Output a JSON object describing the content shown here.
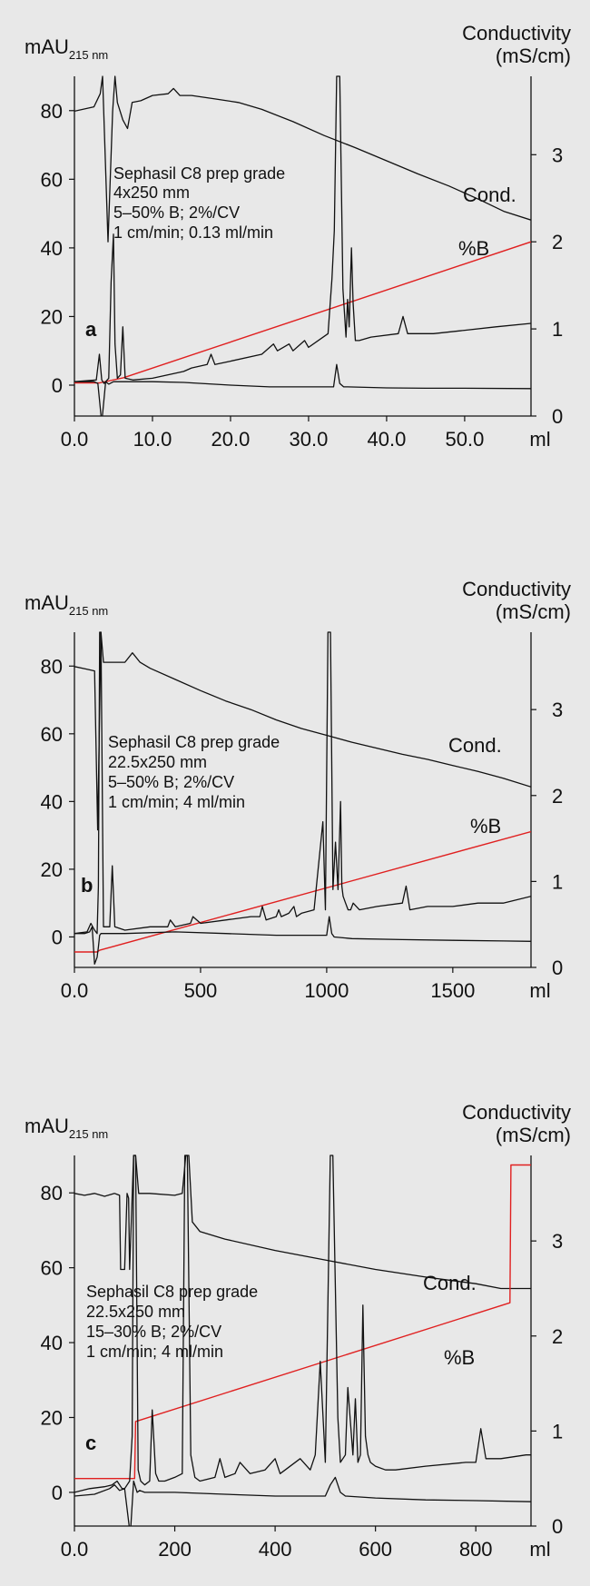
{
  "chart_data": [
    {
      "type": "line",
      "panel_label": "a",
      "y_left_label": "mAU",
      "y_left_label_sub": "215 nm",
      "y_right_label": [
        "Conductivity",
        "(mS/cm)"
      ],
      "x_unit": "ml",
      "xlim": [
        0,
        58.5
      ],
      "ylim_left": [
        -9,
        90
      ],
      "ylim_right": [
        0,
        3.9
      ],
      "x_ticks": [
        0,
        10,
        20,
        30,
        40,
        50
      ],
      "x_tick_labels": [
        "0.0",
        "10.0",
        "20.0",
        "30.0",
        "40.0",
        "50.0"
      ],
      "y_left_ticks": [
        0,
        20,
        40,
        60,
        80
      ],
      "y_left_tick_labels": [
        "0",
        "20",
        "40",
        "60",
        "80"
      ],
      "y_right_ticks": [
        0,
        1,
        2,
        3
      ],
      "y_right_tick_labels": [
        "0",
        "1",
        "2",
        "3"
      ],
      "annotation": [
        "Sephasil C8 prep grade",
        "4x250 mm",
        "5–50% B; 2%/CV",
        "1 cm/min; 0.13 ml/min"
      ],
      "series": [
        {
          "name": "Cond.",
          "axis": "right",
          "color": "#111111",
          "x": [
            0,
            2.5,
            3.3,
            3.6,
            4.3,
            4.9,
            5.2,
            5.5,
            6.2,
            6.8,
            7.4,
            8.5,
            10,
            12,
            12.7,
            13.5,
            15,
            18,
            21,
            24,
            28,
            32,
            36,
            40,
            44,
            48,
            52,
            55,
            58.5
          ],
          "y": [
            3.5,
            3.55,
            3.7,
            3.9,
            2.0,
            3.5,
            3.9,
            3.6,
            3.4,
            3.3,
            3.6,
            3.62,
            3.68,
            3.7,
            3.76,
            3.68,
            3.68,
            3.64,
            3.6,
            3.52,
            3.38,
            3.22,
            3.08,
            2.93,
            2.78,
            2.64,
            2.48,
            2.35,
            2.25
          ]
        },
        {
          "name": "%B",
          "axis": "right",
          "color": "#e02020",
          "x": [
            0,
            3.2,
            6.3,
            58.5
          ],
          "y": [
            0.38,
            0.38,
            0.44,
            2.0
          ]
        },
        {
          "name": "UV 215 nm",
          "axis": "left",
          "color": "#111111",
          "x": [
            0,
            2.8,
            3.2,
            3.5,
            3.8,
            4.4,
            4.7,
            5.0,
            5.2,
            5.5,
            5.9,
            6.2,
            6.5,
            7.5,
            10,
            14,
            15,
            17,
            17.5,
            18,
            20,
            24,
            25.5,
            26,
            27.5,
            28,
            29.5,
            30,
            32.5,
            33,
            33.3,
            33.6,
            34.0,
            34.4,
            34.8,
            35.0,
            35.2,
            35.5,
            35.7,
            36.0,
            36.5,
            38,
            41.5,
            42.1,
            42.7,
            46,
            50,
            54,
            58.5
          ],
          "y": [
            1,
            1.5,
            9,
            1.5,
            0.5,
            2,
            30,
            44,
            12,
            2,
            3,
            17,
            2,
            1.5,
            2,
            4,
            5,
            6,
            9,
            6,
            7,
            9,
            12,
            10,
            12,
            10,
            13,
            11,
            15,
            31,
            45,
            90,
            90,
            28,
            14,
            25,
            17,
            40,
            24,
            13,
            13,
            14,
            15,
            20,
            15,
            15,
            16,
            17,
            18
          ]
        },
        {
          "name": "Baseline",
          "axis": "left",
          "color": "#111111",
          "x": [
            0,
            2.5,
            3.0,
            3.5,
            4.0,
            4.4,
            5.0,
            6,
            8,
            10,
            14,
            20,
            25,
            30,
            33.2,
            33.6,
            34.0,
            34.5,
            35,
            40,
            45,
            50,
            58.5
          ],
          "y": [
            1,
            1,
            0.5,
            -11,
            1,
            0.3,
            1,
            1,
            1,
            1,
            0.8,
            0,
            -0.5,
            -0.5,
            -0.5,
            6,
            0.5,
            -0.5,
            -0.5,
            -0.8,
            -0.9,
            -0.9,
            -1
          ]
        }
      ]
    },
    {
      "type": "line",
      "panel_label": "b",
      "y_left_label": "mAU",
      "y_left_label_sub": "215 nm",
      "y_right_label": [
        "Conductivity",
        "(mS/cm)"
      ],
      "x_unit": "ml",
      "xlim": [
        0,
        1810
      ],
      "ylim_left": [
        -9,
        90
      ],
      "ylim_right": [
        0,
        3.9
      ],
      "x_ticks": [
        0,
        500,
        1000,
        1500
      ],
      "x_tick_labels": [
        "0.0",
        "500",
        "1000",
        "1500"
      ],
      "y_left_ticks": [
        0,
        20,
        40,
        60,
        80
      ],
      "y_left_tick_labels": [
        "0",
        "20",
        "40",
        "60",
        "80"
      ],
      "y_right_ticks": [
        0,
        1,
        2,
        3
      ],
      "y_right_tick_labels": [
        "0",
        "1",
        "2",
        "3"
      ],
      "annotation": [
        "Sephasil C8 prep grade",
        "22.5x250 mm",
        "5–50% B; 2%/CV",
        "1 cm/min; 4 ml/min"
      ],
      "series": [
        {
          "name": "Cond.",
          "axis": "right",
          "color": "#111111",
          "x": [
            0,
            50,
            80,
            92,
            105,
            115,
            150,
            200,
            230,
            260,
            300,
            400,
            500,
            600,
            700,
            800,
            900,
            1000,
            1100,
            1200,
            1300,
            1400,
            1500,
            1600,
            1700,
            1810
          ],
          "y": [
            3.5,
            3.47,
            3.45,
            1.6,
            3.9,
            3.55,
            3.55,
            3.55,
            3.66,
            3.55,
            3.48,
            3.35,
            3.22,
            3.1,
            3.0,
            2.88,
            2.78,
            2.7,
            2.62,
            2.55,
            2.48,
            2.42,
            2.35,
            2.28,
            2.2,
            2.1
          ]
        },
        {
          "name": "%B",
          "axis": "right",
          "color": "#e02020",
          "x": [
            0,
            90,
            100,
            1810
          ],
          "y": [
            0.18,
            0.18,
            0.2,
            1.58
          ]
        },
        {
          "name": "UV 215 nm",
          "axis": "left",
          "color": "#111111",
          "x": [
            0,
            50,
            65,
            80,
            90,
            95,
            100,
            105,
            115,
            140,
            150,
            160,
            200,
            300,
            370,
            380,
            400,
            460,
            470,
            500,
            600,
            700,
            735,
            745,
            760,
            800,
            810,
            820,
            850,
            870,
            880,
            900,
            950,
            985,
            995,
            1005,
            1015,
            1025,
            1035,
            1045,
            1055,
            1060,
            1065,
            1075,
            1085,
            1095,
            1105,
            1130,
            1200,
            1300,
            1315,
            1330,
            1400,
            1500,
            1600,
            1700,
            1810
          ],
          "y": [
            1,
            1.5,
            4,
            2,
            1,
            15,
            90,
            90,
            3,
            3,
            21,
            3,
            2,
            3,
            3,
            5,
            3,
            4,
            6,
            4,
            5,
            6,
            6,
            9,
            5,
            6,
            8,
            6,
            7,
            9,
            6,
            7,
            8,
            34,
            8,
            90,
            90,
            14,
            28,
            14,
            40,
            15,
            12,
            10,
            8,
            8,
            10,
            8,
            9,
            10,
            15,
            8,
            9,
            9,
            10,
            10,
            12
          ]
        },
        {
          "name": "Baseline",
          "axis": "left",
          "color": "#111111",
          "x": [
            0,
            40,
            60,
            70,
            80,
            90,
            95,
            100,
            105,
            200,
            400,
            600,
            800,
            1000,
            1010,
            1020,
            1030,
            1100,
            1300,
            1500,
            1700,
            1810
          ],
          "y": [
            1,
            1,
            1.5,
            3,
            -8,
            -6,
            -3,
            0.5,
            1,
            1,
            1.5,
            1,
            0.5,
            0.5,
            6,
            1,
            0,
            -0.5,
            -0.8,
            -1,
            -1.2,
            -1.3
          ]
        }
      ]
    },
    {
      "type": "line",
      "panel_label": "c",
      "y_left_label": "mAU",
      "y_left_label_sub": "215 nm",
      "y_right_label": [
        "Conductivity",
        "(mS/cm)"
      ],
      "x_unit": "ml",
      "xlim": [
        0,
        910
      ],
      "ylim_left": [
        -9,
        90
      ],
      "ylim_right": [
        0,
        3.9
      ],
      "x_ticks": [
        0,
        200,
        400,
        600,
        800
      ],
      "x_tick_labels": [
        "0.0",
        "200",
        "400",
        "600",
        "800"
      ],
      "y_left_ticks": [
        0,
        20,
        40,
        60,
        80
      ],
      "y_left_tick_labels": [
        "0",
        "20",
        "40",
        "60",
        "80"
      ],
      "y_right_ticks": [
        0,
        1,
        2,
        3
      ],
      "y_right_tick_labels": [
        "0",
        "1",
        "2",
        "3"
      ],
      "annotation": [
        "Sephasil C8 prep grade",
        "22.5x250 mm",
        "15–30% B; 2%/CV",
        "1 cm/min; 4 ml/min"
      ],
      "series": [
        {
          "name": "Cond.",
          "axis": "right",
          "color": "#111111",
          "x": [
            0,
            20,
            40,
            60,
            80,
            90,
            92,
            100,
            105,
            108,
            110,
            118,
            122,
            128,
            150,
            200,
            215,
            222,
            228,
            235,
            250,
            300,
            400,
            500,
            600,
            700,
            800,
            850,
            910
          ],
          "y": [
            3.5,
            3.48,
            3.5,
            3.47,
            3.5,
            3.48,
            2.7,
            2.7,
            3.5,
            3.45,
            2.7,
            3.9,
            3.9,
            3.5,
            3.5,
            3.48,
            3.5,
            3.9,
            3.9,
            3.2,
            3.1,
            3.02,
            2.9,
            2.8,
            2.7,
            2.62,
            2.55,
            2.5,
            2.5
          ]
        },
        {
          "name": "%B",
          "axis": "right",
          "color": "#e02020",
          "x": [
            0,
            120,
            122,
            868,
            870,
            910
          ],
          "y": [
            0.5,
            0.5,
            1.1,
            2.35,
            3.8,
            3.8
          ]
        },
        {
          "name": "UV 215 nm",
          "axis": "left",
          "color": "#111111",
          "x": [
            0,
            30,
            60,
            75,
            85,
            95,
            100,
            110,
            115,
            118,
            122,
            127,
            132,
            140,
            150,
            155,
            162,
            168,
            180,
            200,
            215,
            220,
            225,
            232,
            240,
            250,
            280,
            290,
            300,
            320,
            330,
            350,
            380,
            400,
            410,
            420,
            450,
            470,
            480,
            490,
            500,
            510,
            515,
            525,
            530,
            540,
            545,
            555,
            560,
            565,
            570,
            575,
            580,
            585,
            590,
            600,
            620,
            640,
            700,
            780,
            800,
            810,
            820,
            850,
            900,
            910
          ],
          "y": [
            0,
            1,
            1.5,
            2,
            3,
            1,
            1,
            3,
            15,
            90,
            90,
            6,
            3,
            2,
            3,
            22,
            5,
            3,
            3,
            4,
            5,
            90,
            90,
            10,
            4,
            3,
            4,
            9,
            4,
            5,
            8,
            5,
            6,
            9,
            5,
            6,
            9,
            6,
            10,
            35,
            8,
            90,
            90,
            20,
            8,
            10,
            28,
            10,
            25,
            8,
            10,
            50,
            15,
            10,
            8,
            7,
            6,
            6,
            7,
            8,
            8,
            17,
            9,
            9,
            10,
            10
          ]
        },
        {
          "name": "Baseline",
          "axis": "left",
          "color": "#111111",
          "x": [
            0,
            40,
            70,
            80,
            90,
            100,
            110,
            112,
            118,
            125,
            130,
            140,
            200,
            300,
            400,
            500,
            510,
            520,
            530,
            540,
            600,
            700,
            800,
            910
          ],
          "y": [
            -1,
            -0.5,
            1,
            2,
            0.5,
            1,
            -10,
            -10,
            3,
            0,
            0.5,
            0,
            0,
            -0.5,
            -1,
            -1,
            2,
            4,
            0,
            -1,
            -1.5,
            -2,
            -2.2,
            -2.5
          ]
        }
      ]
    }
  ]
}
